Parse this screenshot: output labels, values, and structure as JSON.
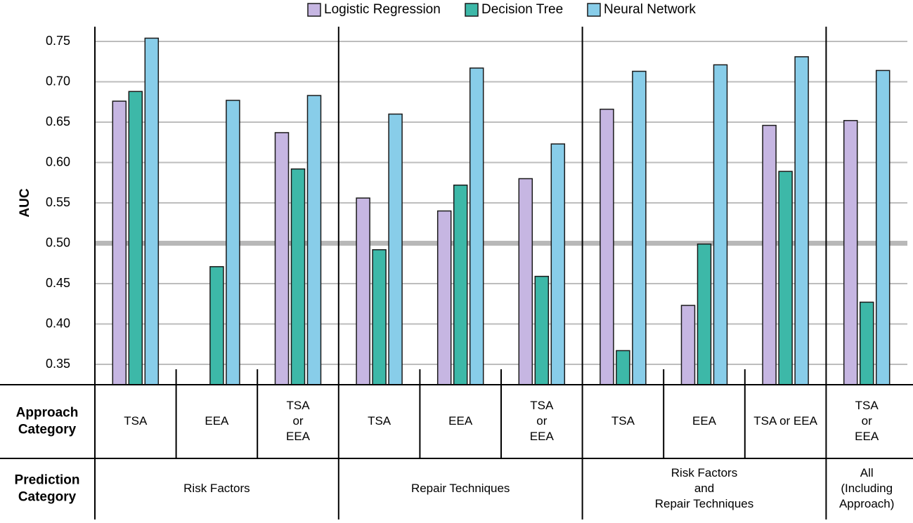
{
  "chart_data": {
    "type": "bar",
    "title": "",
    "ylabel": "AUC",
    "xlabel": "",
    "ylim": [
      0.325,
      0.775
    ],
    "yticks": [
      "0.35",
      "0.40",
      "0.45",
      "0.50",
      "0.55",
      "0.60",
      "0.65",
      "0.70",
      "0.75"
    ],
    "grid": true,
    "reference_line": 0.5,
    "legend_position": "top",
    "series": [
      {
        "name": "Logistic Regression",
        "color": "#c6b6e2",
        "values": [
          0.676,
          null,
          0.637,
          0.556,
          0.54,
          0.58,
          0.666,
          0.423,
          0.646,
          0.652
        ]
      },
      {
        "name": "Decision Tree",
        "color": "#3db8a8",
        "values": [
          0.688,
          0.471,
          0.592,
          0.492,
          0.572,
          0.459,
          0.367,
          0.499,
          0.589,
          0.427
        ]
      },
      {
        "name": "Neural Network",
        "color": "#88cde9",
        "values": [
          0.754,
          0.677,
          0.683,
          0.66,
          0.717,
          0.623,
          0.713,
          0.721,
          0.731,
          0.714
        ]
      }
    ],
    "categories": [
      {
        "id": "rf-tsa",
        "lines": [
          "TSA"
        ]
      },
      {
        "id": "rf-eea",
        "lines": [
          "EEA"
        ]
      },
      {
        "id": "rf-either",
        "lines": [
          "TSA",
          "or",
          "EEA"
        ]
      },
      {
        "id": "rt-tsa",
        "lines": [
          "TSA"
        ]
      },
      {
        "id": "rt-eea",
        "lines": [
          "EEA"
        ]
      },
      {
        "id": "rt-either",
        "lines": [
          "TSA",
          "or",
          "EEA"
        ]
      },
      {
        "id": "rfrt-tsa",
        "lines": [
          "TSA"
        ]
      },
      {
        "id": "rfrt-eea",
        "lines": [
          "EEA"
        ]
      },
      {
        "id": "rfrt-either",
        "lines": [
          "TSA or EEA"
        ]
      },
      {
        "id": "all-either",
        "lines": [
          "TSA",
          "or",
          "EEA"
        ]
      }
    ],
    "groups": [
      {
        "id": "risk-factors",
        "lines": [
          "Risk Factors"
        ],
        "span": [
          0,
          2
        ]
      },
      {
        "id": "repair-techniques",
        "lines": [
          "Repair Techniques"
        ],
        "span": [
          3,
          5
        ]
      },
      {
        "id": "rf-and-rt",
        "lines": [
          "Risk Factors",
          "and",
          "Repair Techniques"
        ],
        "span": [
          6,
          8
        ]
      },
      {
        "id": "all",
        "lines": [
          "All",
          "(Including",
          "Approach)"
        ],
        "span": [
          9,
          9
        ]
      }
    ],
    "row_labels": {
      "approach": [
        "Approach",
        "Category"
      ],
      "prediction": [
        "Prediction",
        "Category"
      ]
    }
  }
}
